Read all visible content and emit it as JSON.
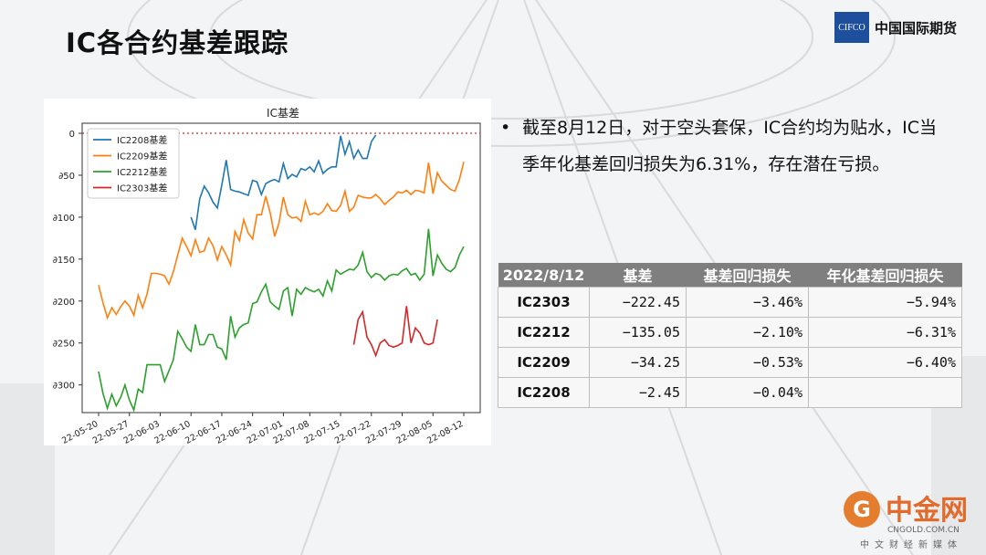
{
  "slide": {
    "title": "IC各合约基差跟踪",
    "logo_box_text": "CIFCO",
    "logo_text": "中国国际期货"
  },
  "bullet": {
    "text": "截至8月12日，对于空头套保，IC合约均为贴水，IC当季年化基差回归损失为6.31%，存在潜在亏损。"
  },
  "table": {
    "headers": [
      "2022/8/12",
      "基差",
      "基差回归损失",
      "年化基差回归损失"
    ],
    "rows": [
      [
        "IC2303",
        "−222.45",
        "−3.46%",
        "−5.94%"
      ],
      [
        "IC2212",
        "−135.05",
        "−2.10%",
        "−6.31%"
      ],
      [
        "IC2209",
        "−34.25",
        "−0.53%",
        "−6.40%"
      ],
      [
        "IC2208",
        "−2.45",
        "−0.04%",
        ""
      ]
    ]
  },
  "watermark": {
    "main": "中金网",
    "url": "CNGOLD.COM.CN",
    "sub": "中文财经新媒体"
  },
  "chart_data": {
    "type": "line",
    "title": "IC基差",
    "x_ticks": [
      "22-05-20",
      "22-05-27",
      "22-06-03",
      "22-06-10",
      "22-06-17",
      "22-06-24",
      "22-07-01",
      "22-07-08",
      "22-07-15",
      "22-07-22",
      "22-07-29",
      "22-08-05",
      "22-08-12"
    ],
    "y_ticks": [
      "0",
      "∂50",
      "∂100",
      "∂150",
      "∂200",
      "∂250",
      "∂300"
    ],
    "y_tick_values": [
      0,
      -50,
      -100,
      -150,
      -200,
      -250,
      -300
    ],
    "ylim": [
      -333,
      12
    ],
    "zero_line": true,
    "legend_position": "upper-left",
    "series": [
      {
        "name": "IC2208基差",
        "color": "#1f77b4",
        "start": 21,
        "values": [
          -100,
          -115,
          -78,
          -63,
          -71,
          -82,
          -89,
          -62,
          -32,
          -67,
          -69,
          -70,
          -72,
          -74,
          -56,
          -58,
          -73,
          -60,
          -57,
          -55,
          -58,
          -36,
          -54,
          -49,
          -52,
          -42,
          -44,
          -40,
          -46,
          -33,
          -48,
          -43,
          -40,
          -40,
          -3,
          -25,
          -10,
          -30,
          -20,
          -30,
          -30,
          -10,
          -2
        ]
      },
      {
        "name": "IC2209基差",
        "color": "#ff7f0e",
        "start": 0,
        "values": [
          -181,
          -202,
          -220,
          -208,
          -216,
          -207,
          -200,
          -206,
          -217,
          -193,
          -208,
          -192,
          -167,
          -167,
          -168,
          -170,
          -180,
          -165,
          -145,
          -125,
          -135,
          -146,
          -127,
          -142,
          -140,
          -125,
          -134,
          -151,
          -135,
          -145,
          -157,
          -117,
          -128,
          -103,
          -119,
          -126,
          -97,
          -97,
          -75,
          -95,
          -123,
          -107,
          -76,
          -97,
          -101,
          -100,
          -105,
          -81,
          -97,
          -95,
          -97,
          -93,
          -84,
          -92,
          -93,
          -86,
          -69,
          -93,
          -88,
          -74,
          -76,
          -77,
          -77,
          -73,
          -78,
          -85,
          -80,
          -76,
          -70,
          -71,
          -68,
          -73,
          -68,
          -69,
          -71,
          -35,
          -72,
          -47,
          -57,
          -62,
          -67,
          -69,
          -55,
          -34
        ]
      },
      {
        "name": "IC2212基差",
        "color": "#2ca02c",
        "start": 0,
        "values": [
          -284,
          -310,
          -328,
          -311,
          -325,
          -315,
          -300,
          -318,
          -330,
          -305,
          -309,
          -276,
          -276,
          -276,
          -276,
          -296,
          -283,
          -270,
          -236,
          -245,
          -255,
          -260,
          -228,
          -252,
          -252,
          -240,
          -240,
          -255,
          -257,
          -270,
          -218,
          -243,
          -232,
          -228,
          -226,
          -203,
          -201,
          -189,
          -180,
          -201,
          -206,
          -210,
          -188,
          -184,
          -218,
          -186,
          -192,
          -184,
          -187,
          -189,
          -186,
          -194,
          -176,
          -188,
          -163,
          -168,
          -165,
          -162,
          -163,
          -157,
          -142,
          -165,
          -172,
          -167,
          -169,
          -175,
          -170,
          -168,
          -169,
          -164,
          -161,
          -169,
          -167,
          -175,
          -168,
          -114,
          -170,
          -145,
          -155,
          -162,
          -165,
          -160,
          -145,
          -135
        ]
      },
      {
        "name": "IC2303基差",
        "color": "#d62728",
        "start": 58,
        "values": [
          -252,
          -222,
          -213,
          -243,
          -252,
          -265,
          -250,
          -246,
          -253,
          -255,
          -253,
          -250,
          -206,
          -250,
          -232,
          -238,
          -250,
          -252,
          -250,
          -222
        ]
      }
    ]
  }
}
